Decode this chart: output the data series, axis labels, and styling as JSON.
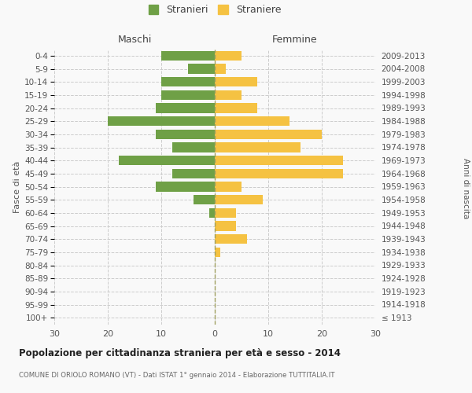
{
  "age_groups": [
    "100+",
    "95-99",
    "90-94",
    "85-89",
    "80-84",
    "75-79",
    "70-74",
    "65-69",
    "60-64",
    "55-59",
    "50-54",
    "45-49",
    "40-44",
    "35-39",
    "30-34",
    "25-29",
    "20-24",
    "15-19",
    "10-14",
    "5-9",
    "0-4"
  ],
  "birth_years": [
    "≤ 1913",
    "1914-1918",
    "1919-1923",
    "1924-1928",
    "1929-1933",
    "1934-1938",
    "1939-1943",
    "1944-1948",
    "1949-1953",
    "1954-1958",
    "1959-1963",
    "1964-1968",
    "1969-1973",
    "1974-1978",
    "1979-1983",
    "1984-1988",
    "1989-1993",
    "1994-1998",
    "1999-2003",
    "2004-2008",
    "2009-2013"
  ],
  "maschi": [
    0,
    0,
    0,
    0,
    0,
    0,
    0,
    0,
    1,
    4,
    11,
    8,
    18,
    8,
    11,
    20,
    11,
    10,
    10,
    5,
    10
  ],
  "femmine": [
    0,
    0,
    0,
    0,
    0,
    1,
    6,
    4,
    4,
    9,
    5,
    24,
    24,
    16,
    20,
    14,
    8,
    5,
    8,
    2,
    5
  ],
  "color_maschi": "#6fa046",
  "color_femmine": "#f5c242",
  "title": "Popolazione per cittadinanza straniera per età e sesso - 2014",
  "subtitle": "COMUNE DI ORIOLO ROMANO (VT) - Dati ISTAT 1° gennaio 2014 - Elaborazione TUTTITALIA.IT",
  "ylabel_left": "Fasce di età",
  "ylabel_right": "Anni di nascita",
  "xlabel_maschi": "Maschi",
  "xlabel_femmine": "Femmine",
  "legend_maschi": "Stranieri",
  "legend_femmine": "Straniere",
  "xlim": 30,
  "background_color": "#f9f9f9",
  "grid_color": "#cccccc"
}
